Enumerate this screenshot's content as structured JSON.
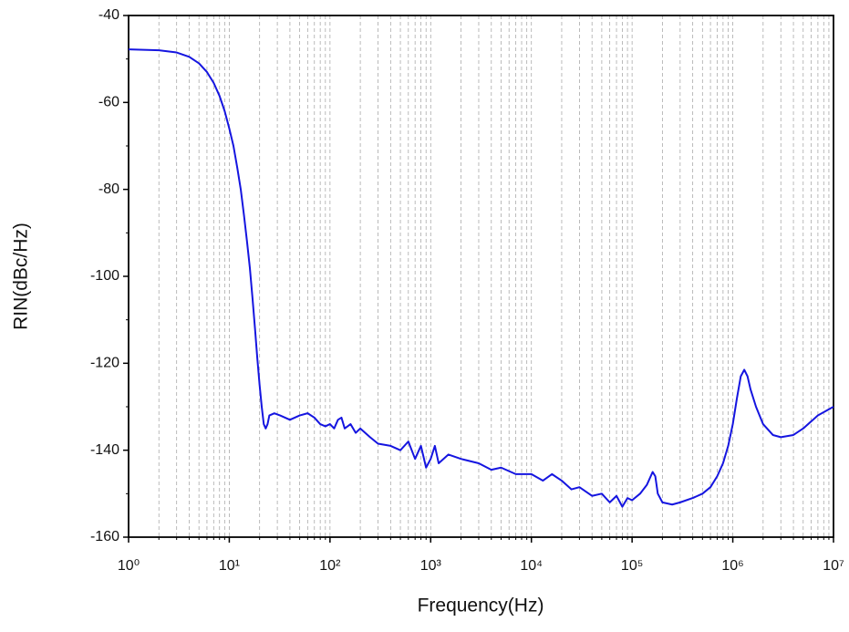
{
  "chart_data": {
    "type": "line",
    "xlabel": "Frequency(Hz)",
    "ylabel": "RIN(dBc/Hz)",
    "xscale": "log",
    "grid": true,
    "color": "#1515e0",
    "xlim": [
      1,
      10000000
    ],
    "ylim": [
      -160,
      -40
    ],
    "xticks": [
      {
        "value": 1,
        "label": "10⁰"
      },
      {
        "value": 10,
        "label": "10¹"
      },
      {
        "value": 100,
        "label": "10²"
      },
      {
        "value": 1000,
        "label": "10³"
      },
      {
        "value": 10000,
        "label": "10⁴"
      },
      {
        "value": 100000,
        "label": "10⁵"
      },
      {
        "value": 1000000,
        "label": "10⁶"
      },
      {
        "value": 10000000,
        "label": "10⁷"
      }
    ],
    "yticks": [
      -40,
      -60,
      -80,
      -100,
      -120,
      -140,
      -160
    ],
    "x": [
      1,
      2,
      3,
      4,
      5,
      6,
      7,
      8,
      9,
      10,
      11,
      12,
      13,
      14,
      15,
      16,
      17,
      18,
      19,
      20,
      21,
      22,
      23,
      24,
      25,
      28,
      32,
      40,
      50,
      60,
      70,
      80,
      90,
      100,
      110,
      120,
      130,
      140,
      160,
      180,
      200,
      250,
      300,
      400,
      500,
      600,
      700,
      800,
      900,
      1000,
      1100,
      1200,
      1500,
      2000,
      3000,
      4000,
      5000,
      7000,
      10000,
      13000,
      16000,
      20000,
      25000,
      30000,
      40000,
      50000,
      60000,
      70000,
      80000,
      90000,
      100000,
      120000,
      140000,
      160000,
      170000,
      180000,
      200000,
      250000,
      300000,
      400000,
      500000,
      600000,
      700000,
      800000,
      900000,
      1000000,
      1100000,
      1200000,
      1300000,
      1400000,
      1500000,
      1700000,
      2000000,
      2500000,
      3000000,
      4000000,
      5000000,
      7000000,
      10000000
    ],
    "values": [
      -47.8,
      -48,
      -48.5,
      -49.5,
      -51,
      -53,
      -55.5,
      -58.5,
      -62,
      -66,
      -70,
      -75,
      -80,
      -86,
      -92,
      -98,
      -105,
      -112,
      -119,
      -125,
      -130,
      -134,
      -135,
      -134,
      -132,
      -131.5,
      -132,
      -133,
      -132,
      -131.5,
      -132.5,
      -134,
      -134.5,
      -134,
      -135,
      -133,
      -132.5,
      -135,
      -134,
      -136,
      -135,
      -137,
      -138.5,
      -139,
      -140,
      -138,
      -142,
      -139,
      -144,
      -142,
      -139,
      -143,
      -141,
      -142,
      -143,
      -144.5,
      -144,
      -145.5,
      -145.5,
      -147,
      -145.5,
      -147,
      -149,
      -148.5,
      -150.5,
      -150,
      -152,
      -150.5,
      -153,
      -151,
      -151.5,
      -150,
      -148,
      -145,
      -146,
      -150,
      -152,
      -152.5,
      -152,
      -151,
      -150,
      -148.5,
      -146,
      -143,
      -139,
      -134,
      -128,
      -123,
      -121.5,
      -123,
      -126,
      -130,
      -134,
      -136.5,
      -137,
      -136.5,
      -135,
      -132,
      -130
    ]
  }
}
